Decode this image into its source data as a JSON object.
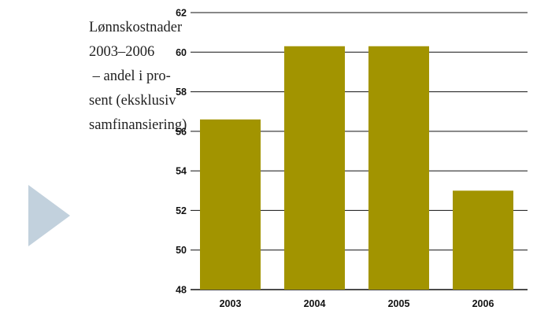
{
  "caption": {
    "lines": [
      "Lønnskostnader",
      "2003–2006",
      " – andel i pro-",
      "sent (eksklusiv",
      "samfinansiering)"
    ]
  },
  "decoration": {
    "icon": "triangle-arrow-icon",
    "color": "#c2d1dd"
  },
  "chart_data": {
    "type": "bar",
    "categories": [
      "2003",
      "2004",
      "2005",
      "2006"
    ],
    "values": [
      56.6,
      60.3,
      60.3,
      53.0
    ],
    "ylim": [
      48,
      62
    ],
    "yticks": [
      "48",
      "50",
      "52",
      "54",
      "56",
      "58",
      "60",
      "62"
    ],
    "grid": true,
    "bar_color": "#a29400"
  }
}
